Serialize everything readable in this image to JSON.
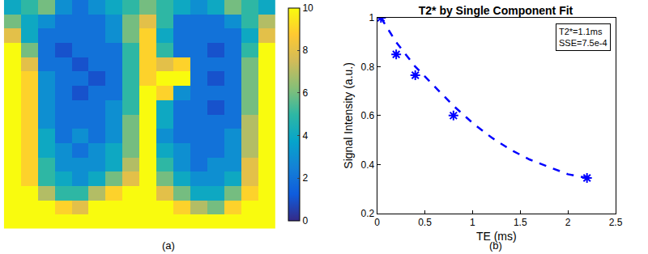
{
  "chart_data": [
    {
      "type": "heatmap",
      "caption": "(a)",
      "tick_labels": false,
      "zlim": [
        0,
        10
      ],
      "zticks": [
        0,
        2,
        4,
        6,
        8,
        10
      ],
      "z": [
        [
          4,
          5,
          6,
          3,
          2,
          3,
          4,
          5,
          6,
          5,
          4,
          3,
          4,
          6,
          5,
          4
        ],
        [
          6,
          4,
          3,
          2,
          2,
          2,
          3,
          6,
          8,
          5,
          2,
          2,
          2,
          3,
          5,
          7
        ],
        [
          8,
          4,
          2,
          2,
          2,
          2,
          3,
          6,
          9,
          4,
          2,
          2,
          2,
          2,
          4,
          8
        ],
        [
          10,
          6,
          2,
          1,
          2,
          2,
          2,
          5,
          9,
          5,
          2,
          2,
          1,
          2,
          5,
          10
        ],
        [
          10,
          8,
          2,
          2,
          1,
          2,
          2,
          5,
          9,
          8,
          9,
          2,
          2,
          2,
          6,
          10
        ],
        [
          10,
          9,
          3,
          2,
          2,
          1,
          2,
          5,
          9,
          10,
          10,
          2,
          1,
          2,
          6,
          10
        ],
        [
          10,
          9,
          3,
          2,
          1,
          2,
          2,
          5,
          10,
          9,
          3,
          2,
          2,
          2,
          6,
          10
        ],
        [
          10,
          9,
          3,
          2,
          2,
          2,
          3,
          5,
          10,
          4,
          2,
          2,
          1,
          2,
          6,
          10
        ],
        [
          10,
          9,
          3,
          2,
          2,
          2,
          3,
          6,
          10,
          4,
          2,
          2,
          2,
          2,
          7,
          10
        ],
        [
          10,
          9,
          4,
          2,
          3,
          2,
          3,
          6,
          10,
          3,
          2,
          2,
          2,
          3,
          7,
          10
        ],
        [
          10,
          9,
          4,
          3,
          2,
          3,
          4,
          6,
          10,
          4,
          3,
          2,
          2,
          3,
          7,
          10
        ],
        [
          10,
          9,
          5,
          3,
          3,
          3,
          4,
          7,
          10,
          5,
          3,
          2,
          3,
          3,
          8,
          10
        ],
        [
          10,
          9,
          5,
          4,
          3,
          4,
          6,
          8,
          10,
          6,
          4,
          3,
          3,
          4,
          8,
          10
        ],
        [
          10,
          10,
          7,
          5,
          5,
          7,
          9,
          10,
          10,
          8,
          6,
          4,
          4,
          6,
          9,
          10
        ],
        [
          10,
          10,
          10,
          9,
          8,
          10,
          10,
          10,
          10,
          10,
          9,
          7,
          6,
          9,
          10,
          10
        ],
        [
          10,
          10,
          10,
          10,
          10,
          10,
          10,
          10,
          10,
          10,
          10,
          10,
          10,
          10,
          10,
          10
        ]
      ]
    },
    {
      "type": "scatter",
      "title": "T2* by Single Component Fit",
      "caption": "(b)",
      "x_label": "TE (ms)",
      "y_label": "Signal Intensity (a.u.)",
      "annotations": [
        "T2*=1.1ms",
        "SSE=7.5e-4"
      ],
      "xlim": [
        0,
        2.5
      ],
      "xticks": [
        0,
        0.5,
        1,
        1.5,
        2,
        2.5
      ],
      "ylim": [
        0.2,
        1
      ],
      "yticks": [
        0.2,
        0.4,
        0.6,
        0.8,
        1
      ],
      "grid": false,
      "series": [
        {
          "type": "scatter",
          "marker": "asterisk",
          "color": "#0000ff",
          "x": [
            0.04,
            0.2,
            0.4,
            0.8,
            2.2
          ],
          "values": [
            1.0,
            0.85,
            0.765,
            0.6,
            0.345
          ]
        },
        {
          "type": "line",
          "line_style": "dashed",
          "color": "#0000ff",
          "x": [
            0.04,
            0.2,
            0.4,
            0.6,
            0.8,
            1.0,
            1.2,
            1.4,
            1.6,
            1.8,
            2.0,
            2.2
          ],
          "values": [
            1.0,
            0.9,
            0.8,
            0.72,
            0.64,
            0.57,
            0.51,
            0.46,
            0.42,
            0.39,
            0.36,
            0.345
          ]
        }
      ]
    }
  ]
}
